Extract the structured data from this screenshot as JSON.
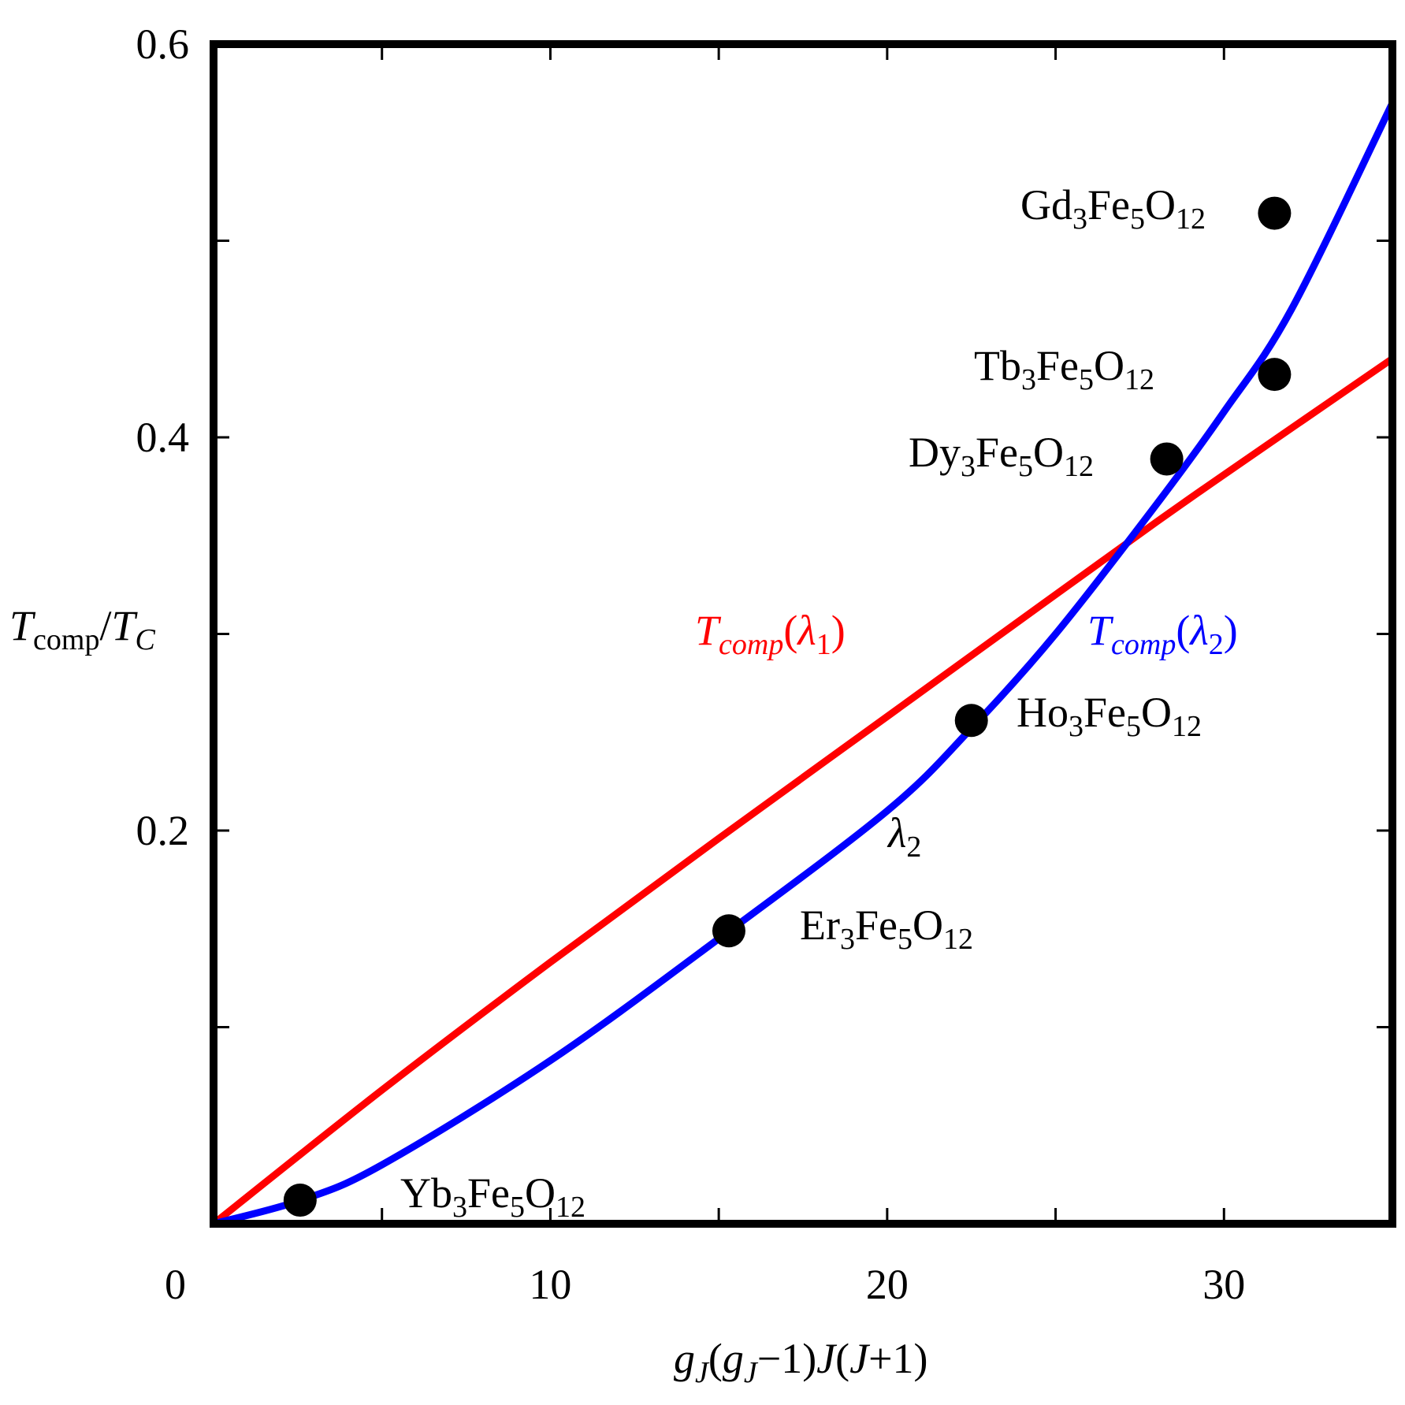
{
  "chart_data": {
    "type": "scatter",
    "xlabel": {
      "g1": "g",
      "g1sub": "J",
      "p1": "(",
      "g2": "g",
      "g2sub": "J",
      "p2": "−1)",
      "j1": "J",
      "p3": "(",
      "j2": "J",
      "p4": "+1)"
    },
    "ylabel": {
      "t1": "T",
      "t1sub": "comp",
      "slash": "/",
      "t2": "T",
      "t2sub": "C"
    },
    "xlim": [
      0,
      35
    ],
    "ylim": [
      0,
      0.6
    ],
    "x_ticks": [
      {
        "value": 0,
        "label": "0"
      },
      {
        "value": 10,
        "label": "10"
      },
      {
        "value": 20,
        "label": "20"
      },
      {
        "value": 30,
        "label": "30"
      }
    ],
    "x_minor_ticks": [
      5,
      15,
      25
    ],
    "y_ticks": [
      {
        "value": 0.2,
        "label": "0.2"
      },
      {
        "value": 0.4,
        "label": "0.4"
      },
      {
        "value": 0.6,
        "label": "0.6"
      }
    ],
    "y_minor_ticks": [
      0.1,
      0.3,
      0.5
    ],
    "grid": false,
    "points": [
      {
        "x": 2.57,
        "y": 0.012,
        "label": {
          "a": "Yb",
          "s1": "3",
          "b": "Fe",
          "s2": "5",
          "c": "O",
          "s3": "12"
        }
      },
      {
        "x": 15.3,
        "y": 0.149,
        "label": {
          "a": "Er",
          "s1": "3",
          "b": "Fe",
          "s2": "5",
          "c": "O",
          "s3": "12"
        }
      },
      {
        "x": 22.5,
        "y": 0.256,
        "label": {
          "a": "Ho",
          "s1": "3",
          "b": "Fe",
          "s2": "5",
          "c": "O",
          "s3": "12"
        }
      },
      {
        "x": 28.3,
        "y": 0.389,
        "label": {
          "a": "Dy",
          "s1": "3",
          "b": "Fe",
          "s2": "5",
          "c": "O",
          "s3": "12"
        }
      },
      {
        "x": 31.5,
        "y": 0.432,
        "label": {
          "a": "Tb",
          "s1": "3",
          "b": "Fe",
          "s2": "5",
          "c": "O",
          "s3": "12"
        }
      },
      {
        "x": 31.5,
        "y": 0.514,
        "label": {
          "a": "Gd",
          "s1": "3",
          "b": "Fe",
          "s2": "5",
          "c": "O",
          "s3": "12"
        }
      }
    ],
    "series": [
      {
        "color": "#ff0000",
        "label": {
          "t": "T",
          "sub": "comp",
          "open": "(",
          "lam": "λ",
          "lamsub": "1",
          "close": ")"
        },
        "x": [
          0,
          5,
          10,
          15,
          20,
          25,
          28,
          30,
          35
        ],
        "y": [
          0,
          0.068,
          0.133,
          0.196,
          0.258,
          0.32,
          0.357,
          0.381,
          0.44
        ]
      },
      {
        "color": "#0000ff",
        "label": {
          "t": "T",
          "sub": "comp",
          "open": "(",
          "lam": "λ",
          "lamsub": "2",
          "close": ")"
        },
        "x": [
          0,
          2.6,
          5,
          10,
          15,
          20,
          22.5,
          25,
          28,
          30,
          32,
          35
        ],
        "y": [
          0,
          0.012,
          0.03,
          0.083,
          0.145,
          0.21,
          0.252,
          0.3,
          0.366,
          0.413,
          0.465,
          0.57
        ]
      }
    ],
    "annotation": {
      "lam": "λ",
      "sub": "2",
      "x": 20.4,
      "y": 0.195
    }
  }
}
